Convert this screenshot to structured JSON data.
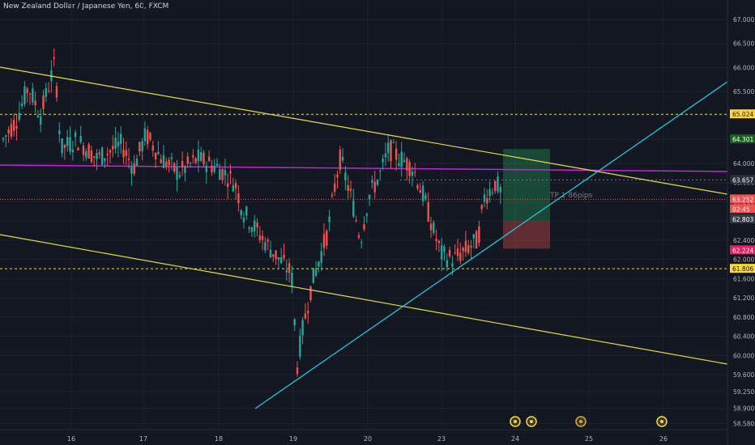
{
  "chart_data": {
    "type": "candlestick",
    "title": "New Zealand Dollar / Japanese Yen, 60, FXCM",
    "ylim": [
      58.4,
      68.0
    ],
    "y_ticks": [
      "67.500",
      "67.000",
      "66.500",
      "66.000",
      "65.500",
      "65.000",
      "64.500",
      "64.000",
      "63.600",
      "63.200",
      "62.800",
      "62.400",
      "62.000",
      "61.600",
      "61.200",
      "60.800",
      "60.400",
      "60.000",
      "59.600",
      "59.250",
      "58.900",
      "58.580"
    ],
    "x_ticks": [
      "16",
      "17",
      "18",
      "19",
      "20",
      "23",
      "24",
      "25",
      "26"
    ],
    "price_labels": [
      {
        "text": "65.024",
        "bg": "#ffd740",
        "fg": "#131722"
      },
      {
        "text": "64.301",
        "bg": "#1b5e20",
        "fg": "#ffffff"
      },
      {
        "text": "63.657",
        "bg": "#2a2e39",
        "fg": "#ffffff"
      },
      {
        "text": "63.252",
        "bg": "#ef5350",
        "fg": "#ffffff"
      },
      {
        "text": "02:45",
        "bg": "#ef5350",
        "fg": "#ffffff"
      },
      {
        "text": "62.803",
        "bg": "#363a45",
        "fg": "#ffffff"
      },
      {
        "text": "62.224",
        "bg": "#e91e63",
        "fg": "#ffffff"
      },
      {
        "text": "61.806",
        "bg": "#ffd740",
        "fg": "#131722"
      }
    ],
    "annotation": "TP 1 86pips",
    "levels": {
      "resistance": 65.024,
      "support": 61.806,
      "magenta": 64.1,
      "entry": 63.657,
      "current": 63.252
    },
    "trade_box": {
      "entry": 62.803,
      "target": 64.301,
      "stop": 62.224
    },
    "colors": {
      "up": "#26a69a",
      "down": "#ef5350",
      "channel": "#e8e03a",
      "trendline": "#26c6da",
      "magenta": "#c026d3",
      "level": "#e8e03a"
    }
  }
}
